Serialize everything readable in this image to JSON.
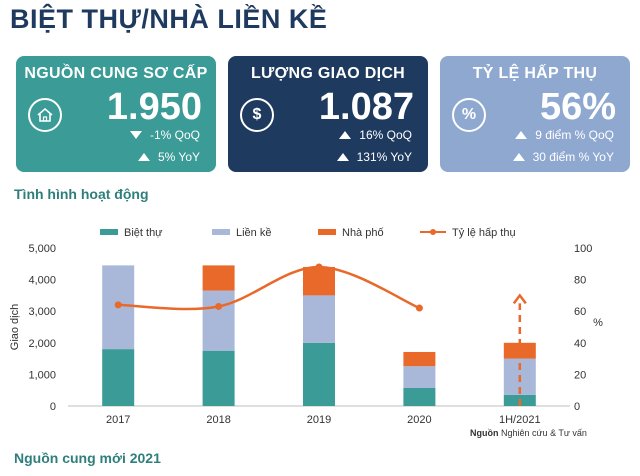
{
  "title": "BIỆT THỰ/NHÀ LIỀN KỀ",
  "kpis": [
    {
      "label": "NGUỒN CUNG SƠ CẤP",
      "value": "1.950",
      "icon": "house-icon",
      "color": "#3a9b97",
      "changes": [
        {
          "direction": "down",
          "text": "-1% QoQ"
        },
        {
          "direction": "up",
          "text": "5% YoY"
        }
      ]
    },
    {
      "label": "LƯỢNG GIAO DỊCH",
      "value": "1.087",
      "icon": "dollar-coin-icon",
      "color": "#1f3a5f",
      "changes": [
        {
          "direction": "up",
          "text": "16% QoQ"
        },
        {
          "direction": "up",
          "text": "131% YoY"
        }
      ]
    },
    {
      "label": "TỶ LỆ HẤP THỤ",
      "value": "56%",
      "icon": "percent-icon",
      "color": "#8fa8d0",
      "changes": [
        {
          "direction": "up",
          "text": "9 điểm % QoQ"
        },
        {
          "direction": "up",
          "text": "30 điểm % YoY"
        }
      ]
    }
  ],
  "section_activity": "Tình hình hoạt động",
  "section_supply": "Nguồn cung mới 2021",
  "source_label": "Nguồn",
  "source_text": "Nghiên cứu & Tư vấn",
  "chart_data": {
    "type": "bar",
    "stacked": true,
    "categories": [
      "2017",
      "2018",
      "2019",
      "2020",
      "1H/2021"
    ],
    "series": [
      {
        "name": "Biệt thự",
        "color": "#3a9b97",
        "values": [
          1800,
          1750,
          2000,
          570,
          350
        ]
      },
      {
        "name": "Liền kề",
        "color": "#a9b8d9",
        "values": [
          2650,
          1900,
          1500,
          690,
          1150
        ]
      },
      {
        "name": "Nhà phố",
        "color": "#e8692a",
        "values": [
          0,
          800,
          900,
          450,
          500
        ]
      }
    ],
    "line_series": {
      "name": "Tỷ lệ hấp thụ",
      "color": "#e8692a",
      "values": [
        64,
        63,
        88,
        62,
        70
      ],
      "dashed_last": true
    },
    "ylabel": "Giao dịch",
    "ylim": [
      0,
      5000
    ],
    "yticks": [
      "0",
      "1,000",
      "2,000",
      "3,000",
      "4,000",
      "5,000"
    ],
    "y2label": "%",
    "y2lim": [
      0,
      100
    ],
    "y2ticks": [
      "0",
      "20",
      "40",
      "60",
      "80",
      "100"
    ],
    "legend_position": "top"
  }
}
